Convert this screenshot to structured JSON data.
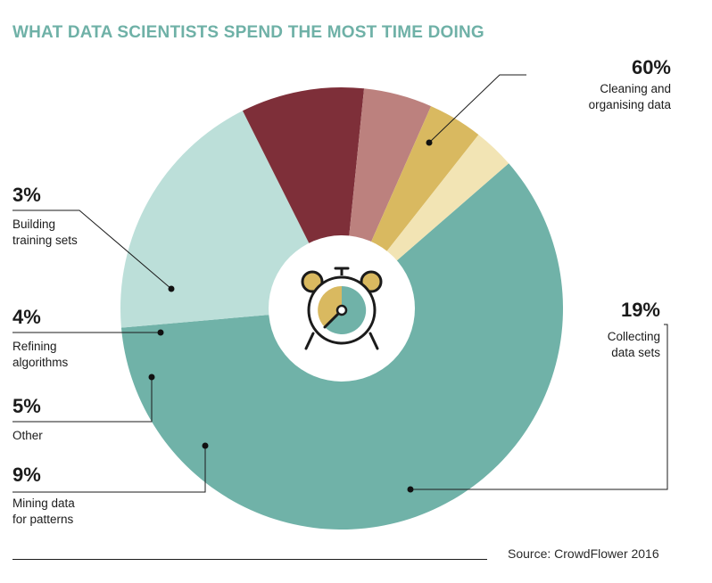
{
  "chart_data": {
    "type": "pie",
    "title": "WHAT DATA SCIENTISTS SPEND THE MOST TIME DOING",
    "unit": "%",
    "slices": [
      {
        "label_lines": [
          "Cleaning and",
          "organising data"
        ],
        "value": 60,
        "display": "60%",
        "color": "#70b2a8"
      },
      {
        "label_lines": [
          "Collecting",
          "data sets"
        ],
        "value": 19,
        "display": "19%",
        "color": "#bcdfd9"
      },
      {
        "label_lines": [
          "Mining data",
          "for patterns"
        ],
        "value": 9,
        "display": "9%",
        "color": "#7e2f39"
      },
      {
        "label_lines": [
          "Other"
        ],
        "value": 5,
        "display": "5%",
        "color": "#bc817e"
      },
      {
        "label_lines": [
          "Refining",
          "algorithms"
        ],
        "value": 4,
        "display": "4%",
        "color": "#d9b960"
      },
      {
        "label_lines": [
          "Building",
          "training sets"
        ],
        "value": 3,
        "display": "3%",
        "color": "#f2e4b4"
      }
    ],
    "center_icon": "alarm-clock-icon",
    "source": "Source: CrowdFlower 2016"
  }
}
